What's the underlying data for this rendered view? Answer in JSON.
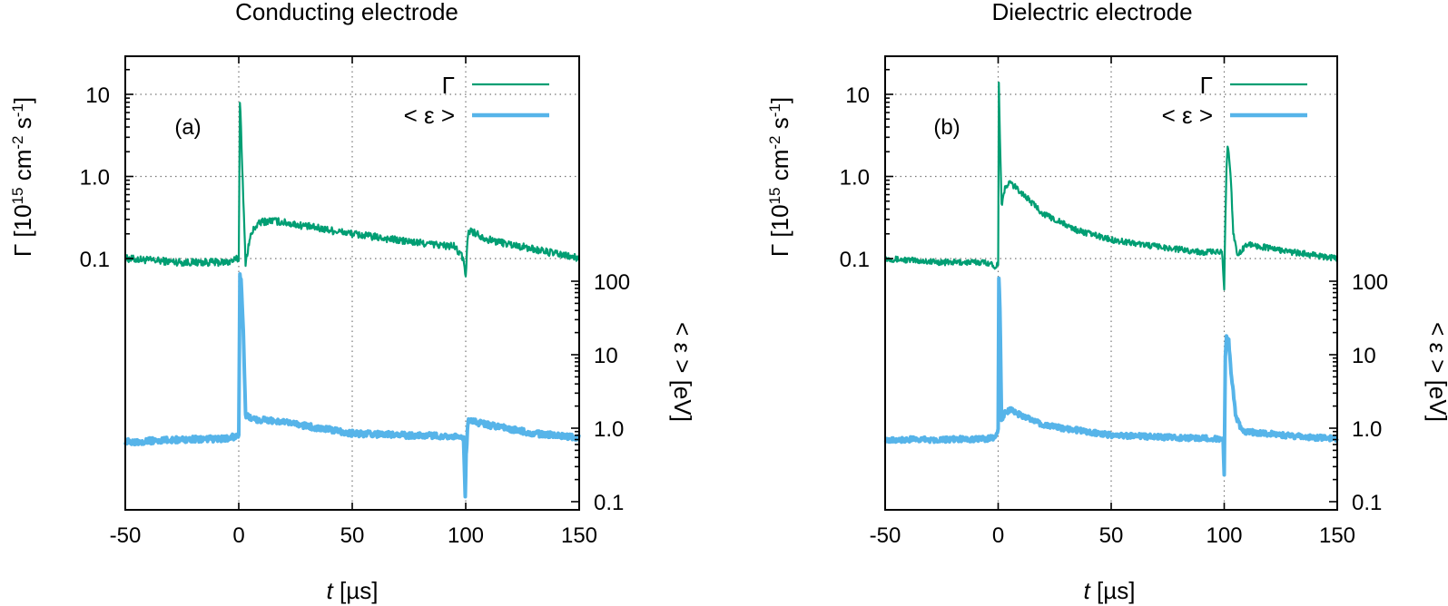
{
  "chart_data": [
    {
      "type": "line",
      "title": "Conducting electrode",
      "panel_label": "(a)",
      "xlabel_italic": "t",
      "xlabel_rest": " [µs]",
      "ylabel_left": "Γ [10<sup>15</sup> cm<sup>-2</sup> s<sup>-1</sup>]",
      "ylabel_right": "< ε > [eV]",
      "xlim": [
        -50,
        150
      ],
      "xticks": [
        "-50",
        "0",
        "50",
        "100",
        "150"
      ],
      "y_left_scale": "log",
      "y_left_ticks": [
        "0.1",
        "1.0",
        "10"
      ],
      "y_right_scale": "log",
      "y_right_ticks": [
        "0.1",
        "1.0",
        "10",
        "100"
      ],
      "grid": true,
      "legend_position": "top-right",
      "series": [
        {
          "name": "Γ",
          "axis": "left",
          "color": "#009e73",
          "x": [
            -50,
            -25,
            -5,
            0,
            0.5,
            1,
            2,
            3,
            5,
            7,
            10,
            15,
            25,
            50,
            75,
            95,
            99,
            100,
            100.5,
            101,
            102,
            105,
            110,
            130,
            150
          ],
          "y": [
            0.1,
            0.09,
            0.09,
            0.1,
            8.5,
            4.0,
            0.5,
            0.09,
            0.18,
            0.24,
            0.28,
            0.29,
            0.26,
            0.2,
            0.16,
            0.14,
            0.1,
            0.055,
            0.13,
            0.2,
            0.22,
            0.2,
            0.17,
            0.13,
            0.1
          ],
          "noise": 0.1
        },
        {
          "name": "< ε >",
          "axis": "right",
          "color": "#56b4e9",
          "x": [
            -50,
            -25,
            -5,
            0,
            0.5,
            1,
            2,
            3,
            5,
            8,
            12,
            20,
            50,
            75,
            95,
            99,
            99.8,
            100.2,
            101,
            102,
            105,
            110,
            130,
            150
          ],
          "y": [
            0.65,
            0.7,
            0.72,
            0.8,
            120,
            100,
            20,
            1.5,
            1.4,
            1.3,
            1.3,
            1.2,
            0.85,
            0.8,
            0.78,
            0.7,
            0.12,
            0.45,
            1.2,
            1.3,
            1.2,
            1.1,
            0.85,
            0.75
          ],
          "noise": 0.09
        }
      ]
    },
    {
      "type": "line",
      "title": "Dielectric electrode",
      "panel_label": "(b)",
      "xlabel_italic": "t",
      "xlabel_rest": " [µs]",
      "ylabel_left": "Γ [10<sup>15</sup> cm<sup>-2</sup> s<sup>-1</sup>]",
      "ylabel_right": "< ε > [eV]",
      "xlim": [
        -50,
        150
      ],
      "xticks": [
        "-50",
        "0",
        "50",
        "100",
        "150"
      ],
      "y_left_scale": "log",
      "y_left_ticks": [
        "0.1",
        "1.0",
        "10"
      ],
      "y_right_scale": "log",
      "y_right_ticks": [
        "0.1",
        "1.0",
        "10",
        "100"
      ],
      "grid": true,
      "legend_position": "top-right",
      "series": [
        {
          "name": "Γ",
          "axis": "left",
          "color": "#009e73",
          "x": [
            -50,
            -25,
            -5,
            -1,
            0,
            0.3,
            0.8,
            1.5,
            3,
            5,
            10,
            20,
            35,
            50,
            70,
            90,
            99,
            100,
            100.5,
            101,
            101.5,
            102,
            103,
            104,
            106,
            110,
            130,
            150
          ],
          "y": [
            0.1,
            0.09,
            0.09,
            0.08,
            0.09,
            13,
            3,
            0.45,
            0.7,
            0.85,
            0.65,
            0.35,
            0.22,
            0.17,
            0.14,
            0.12,
            0.12,
            0.045,
            0.3,
            1.2,
            2.4,
            2.0,
            0.9,
            0.2,
            0.11,
            0.15,
            0.12,
            0.1
          ],
          "noise": 0.08
        },
        {
          "name": "< ε >",
          "axis": "right",
          "color": "#56b4e9",
          "x": [
            -50,
            -25,
            -5,
            -1,
            0,
            0.3,
            0.8,
            1.5,
            3,
            5,
            10,
            20,
            50,
            75,
            95,
            99.5,
            100,
            100.5,
            101,
            102,
            103,
            105,
            108,
            110,
            130,
            150
          ],
          "y": [
            0.7,
            0.7,
            0.72,
            0.75,
            1.0,
            110,
            40,
            1.2,
            1.6,
            1.8,
            1.5,
            1.1,
            0.8,
            0.75,
            0.72,
            0.7,
            0.22,
            10,
            18,
            15,
            6,
            1.5,
            0.9,
            0.9,
            0.78,
            0.72
          ],
          "noise": 0.08
        }
      ]
    }
  ]
}
